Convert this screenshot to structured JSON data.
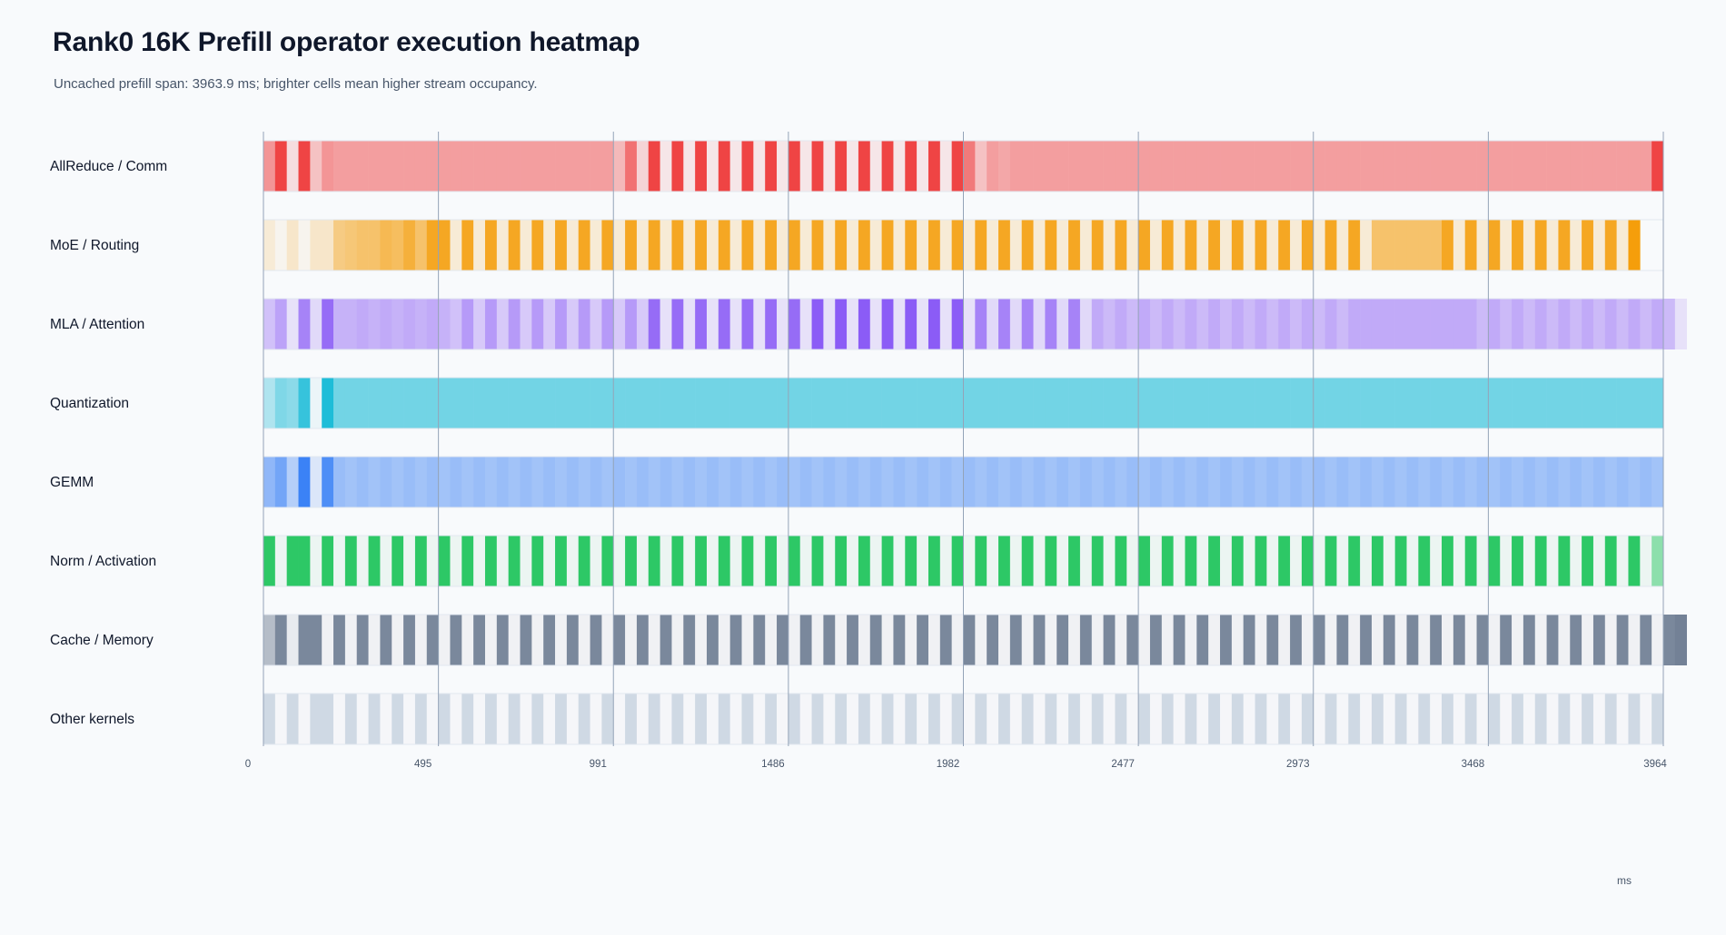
{
  "title": "Rank0 16K Prefill operator execution heatmap",
  "subtitle": "Uncached prefill span: 3963.9 ms; brighter cells mean higher stream occupancy.",
  "chart_data": {
    "type": "heatmap",
    "title": "Rank0 16K Prefill operator execution heatmap",
    "subtitle": "Uncached prefill span: 3963.9 ms; brighter cells mean higher stream occupancy.",
    "xlabel": "ms",
    "xlim": [
      0,
      3963.9
    ],
    "x_ticks": [
      "0",
      "495",
      "991",
      "1486",
      "1982",
      "2477",
      "2973",
      "3468",
      "3964"
    ],
    "cells_per_row": 120,
    "grid": true,
    "rows": [
      {
        "name": "AllReduce / Comm",
        "color": "#ef4444",
        "intensity": [
          0.55,
          1.0,
          0.15,
          1.0,
          0.3,
          0.55,
          0.5,
          0.5,
          0.5,
          0.5,
          0.5,
          0.5,
          0.5,
          0.5,
          0.5,
          0.5,
          0.5,
          0.5,
          0.5,
          0.5,
          0.5,
          0.5,
          0.5,
          0.5,
          0.5,
          0.5,
          0.5,
          0.5,
          0.5,
          0.5,
          0.35,
          0.75,
          0.2,
          1.0,
          0.1,
          1.0,
          0.1,
          1.0,
          0.1,
          1.0,
          0.1,
          1.0,
          0.1,
          1.0,
          0.1,
          1.0,
          0.1,
          1.0,
          0.1,
          1.0,
          0.1,
          1.0,
          0.1,
          1.0,
          0.1,
          1.0,
          0.1,
          1.0,
          0.1,
          1.0,
          0.7,
          0.3,
          0.5,
          0.45,
          0.5,
          0.5,
          0.5,
          0.5,
          0.5,
          0.5,
          0.5,
          0.5,
          0.5,
          0.5,
          0.5,
          0.5,
          0.5,
          0.5,
          0.5,
          0.5,
          0.5,
          0.5,
          0.5,
          0.5,
          0.5,
          0.5,
          0.5,
          0.5,
          0.5,
          0.5,
          0.5,
          0.5,
          0.5,
          0.5,
          0.5,
          0.5,
          0.5,
          0.5,
          0.5,
          0.5,
          0.5,
          0.5,
          0.5,
          0.5,
          0.5,
          0.5,
          0.5,
          0.5,
          0.5,
          0.5,
          0.5,
          0.5,
          0.5,
          0.5,
          0.5,
          0.5,
          0.5,
          0.5,
          0.5,
          1.0
        ]
      },
      {
        "name": "MoE / Routing",
        "color": "#f59e0b",
        "intensity": [
          0.15,
          0.05,
          0.2,
          0.05,
          0.2,
          0.2,
          0.5,
          0.55,
          0.6,
          0.6,
          0.7,
          0.65,
          0.8,
          0.6,
          0.9,
          0.9,
          0.15,
          0.9,
          0.15,
          0.9,
          0.15,
          0.9,
          0.15,
          0.9,
          0.15,
          0.9,
          0.15,
          0.9,
          0.15,
          0.9,
          0.15,
          0.9,
          0.15,
          0.9,
          0.15,
          0.9,
          0.15,
          0.9,
          0.15,
          0.9,
          0.15,
          0.9,
          0.15,
          0.9,
          0.15,
          0.9,
          0.15,
          0.9,
          0.15,
          0.9,
          0.15,
          0.9,
          0.15,
          0.9,
          0.15,
          0.9,
          0.15,
          0.9,
          0.15,
          0.9,
          0.15,
          0.9,
          0.15,
          0.9,
          0.15,
          0.9,
          0.15,
          0.9,
          0.15,
          0.9,
          0.15,
          0.9,
          0.15,
          0.9,
          0.15,
          0.9,
          0.15,
          0.9,
          0.15,
          0.9,
          0.15,
          0.9,
          0.15,
          0.9,
          0.15,
          0.9,
          0.15,
          0.9,
          0.15,
          0.9,
          0.15,
          0.9,
          0.15,
          0.9,
          0.15,
          0.6,
          0.6,
          0.6,
          0.6,
          0.6,
          0.6,
          0.9,
          0.15,
          0.9,
          0.15,
          0.9,
          0.15,
          0.9,
          0.15,
          0.9,
          0.15,
          0.9,
          0.15,
          0.9,
          0.15,
          0.9,
          0.15,
          1.0
        ]
      },
      {
        "name": "MLA / Attention",
        "color": "#8b5cf6",
        "intensity": [
          0.35,
          0.55,
          0.15,
          0.75,
          0.2,
          0.9,
          0.45,
          0.45,
          0.5,
          0.45,
          0.5,
          0.45,
          0.5,
          0.45,
          0.5,
          0.45,
          0.35,
          0.6,
          0.3,
          0.6,
          0.3,
          0.6,
          0.3,
          0.6,
          0.3,
          0.6,
          0.3,
          0.6,
          0.3,
          0.6,
          0.3,
          0.6,
          0.3,
          0.9,
          0.15,
          0.9,
          0.15,
          0.9,
          0.15,
          0.9,
          0.15,
          0.9,
          0.15,
          0.9,
          0.15,
          0.9,
          0.15,
          1.0,
          0.15,
          1.0,
          0.15,
          1.0,
          0.15,
          1.0,
          0.15,
          1.0,
          0.15,
          1.0,
          0.15,
          1.0,
          0.15,
          0.75,
          0.2,
          0.75,
          0.2,
          0.75,
          0.2,
          0.75,
          0.2,
          0.75,
          0.2,
          0.5,
          0.4,
          0.5,
          0.4,
          0.5,
          0.4,
          0.5,
          0.4,
          0.5,
          0.4,
          0.5,
          0.4,
          0.5,
          0.4,
          0.5,
          0.4,
          0.5,
          0.4,
          0.5,
          0.4,
          0.5,
          0.4,
          0.5,
          0.5,
          0.5,
          0.5,
          0.5,
          0.5,
          0.5,
          0.5,
          0.5,
          0.5,
          0.5,
          0.4,
          0.5,
          0.4,
          0.5,
          0.4,
          0.5,
          0.4,
          0.5,
          0.4,
          0.5,
          0.4,
          0.5,
          0.4,
          0.5,
          0.4,
          0.5,
          0.4,
          0.15
        ]
      },
      {
        "name": "Quantization",
        "color": "#06b6d4",
        "intensity": [
          0.3,
          0.5,
          0.45,
          0.8,
          0.05,
          0.9,
          0.55,
          0.55,
          0.55,
          0.55,
          0.55,
          0.55,
          0.55,
          0.55,
          0.55,
          0.55,
          0.55,
          0.55,
          0.55,
          0.55,
          0.55,
          0.55,
          0.55,
          0.55,
          0.55,
          0.55,
          0.55,
          0.55,
          0.55,
          0.55,
          0.55,
          0.55,
          0.55,
          0.55,
          0.55,
          0.55,
          0.55,
          0.55,
          0.55,
          0.55,
          0.55,
          0.55,
          0.55,
          0.55,
          0.55,
          0.55,
          0.55,
          0.55,
          0.55,
          0.55,
          0.55,
          0.55,
          0.55,
          0.55,
          0.55,
          0.55,
          0.55,
          0.55,
          0.55,
          0.55,
          0.55,
          0.55,
          0.55,
          0.55,
          0.55,
          0.55,
          0.55,
          0.55,
          0.55,
          0.55,
          0.55,
          0.55,
          0.55,
          0.55,
          0.55,
          0.55,
          0.55,
          0.55,
          0.55,
          0.55,
          0.55,
          0.55,
          0.55,
          0.55,
          0.55,
          0.55,
          0.55,
          0.55,
          0.55,
          0.55,
          0.55,
          0.55,
          0.55,
          0.55,
          0.55,
          0.55,
          0.55,
          0.55,
          0.55,
          0.55,
          0.55,
          0.55,
          0.55,
          0.55,
          0.55,
          0.55,
          0.55,
          0.55,
          0.55,
          0.55,
          0.55,
          0.55,
          0.55,
          0.55,
          0.55,
          0.55,
          0.55,
          0.55,
          0.55,
          0.55
        ]
      },
      {
        "name": "GEMM",
        "color": "#3b82f6",
        "intensity": [
          0.55,
          0.7,
          0.35,
          1.0,
          0.15,
          0.9,
          0.5,
          0.45,
          0.5,
          0.45,
          0.5,
          0.45,
          0.5,
          0.45,
          0.5,
          0.45,
          0.5,
          0.45,
          0.5,
          0.45,
          0.5,
          0.45,
          0.5,
          0.45,
          0.5,
          0.45,
          0.5,
          0.45,
          0.5,
          0.45,
          0.5,
          0.45,
          0.5,
          0.45,
          0.5,
          0.45,
          0.5,
          0.45,
          0.5,
          0.45,
          0.5,
          0.45,
          0.5,
          0.45,
          0.5,
          0.45,
          0.5,
          0.45,
          0.5,
          0.45,
          0.5,
          0.45,
          0.5,
          0.45,
          0.5,
          0.45,
          0.5,
          0.45,
          0.5,
          0.45,
          0.5,
          0.45,
          0.5,
          0.45,
          0.5,
          0.45,
          0.5,
          0.45,
          0.5,
          0.45,
          0.5,
          0.45,
          0.5,
          0.45,
          0.5,
          0.45,
          0.5,
          0.45,
          0.5,
          0.45,
          0.5,
          0.45,
          0.5,
          0.45,
          0.5,
          0.45,
          0.5,
          0.45,
          0.5,
          0.45,
          0.5,
          0.45,
          0.5,
          0.45,
          0.5,
          0.45,
          0.5,
          0.45,
          0.5,
          0.45,
          0.5,
          0.45,
          0.5,
          0.45,
          0.5,
          0.45,
          0.5,
          0.45,
          0.5,
          0.45,
          0.5,
          0.45,
          0.5,
          0.45,
          0.5,
          0.45,
          0.5,
          0.45,
          0.5,
          0.45
        ]
      },
      {
        "name": "Norm / Activation",
        "color": "#22c55e",
        "intensity": [
          0.95,
          0.05,
          0.95,
          0.95,
          0.05,
          0.95,
          0.05,
          0.95,
          0.05,
          0.95,
          0.05,
          0.95,
          0.05,
          0.95,
          0.05,
          0.95,
          0.05,
          0.95,
          0.05,
          0.95,
          0.05,
          0.95,
          0.05,
          0.95,
          0.05,
          0.95,
          0.05,
          0.95,
          0.05,
          0.95,
          0.05,
          0.95,
          0.05,
          0.95,
          0.05,
          0.95,
          0.05,
          0.95,
          0.05,
          0.95,
          0.05,
          0.95,
          0.05,
          0.95,
          0.05,
          0.95,
          0.05,
          0.95,
          0.05,
          0.95,
          0.05,
          0.95,
          0.05,
          0.95,
          0.05,
          0.95,
          0.05,
          0.95,
          0.05,
          0.95,
          0.05,
          0.95,
          0.05,
          0.95,
          0.05,
          0.95,
          0.05,
          0.95,
          0.05,
          0.95,
          0.05,
          0.95,
          0.05,
          0.95,
          0.05,
          0.95,
          0.05,
          0.95,
          0.05,
          0.95,
          0.05,
          0.95,
          0.05,
          0.95,
          0.05,
          0.95,
          0.05,
          0.95,
          0.05,
          0.95,
          0.05,
          0.95,
          0.05,
          0.95,
          0.05,
          0.95,
          0.05,
          0.95,
          0.05,
          0.95,
          0.05,
          0.95,
          0.05,
          0.95,
          0.05,
          0.95,
          0.05,
          0.95,
          0.05,
          0.95,
          0.05,
          0.95,
          0.05,
          0.95,
          0.05,
          0.95,
          0.05,
          0.95,
          0.05,
          0.5
        ]
      },
      {
        "name": "Cache / Memory",
        "color": "#64748b",
        "intensity": [
          0.45,
          0.85,
          0.1,
          0.85,
          0.85,
          0.05,
          0.85,
          0.05,
          0.85,
          0.05,
          0.85,
          0.05,
          0.85,
          0.05,
          0.85,
          0.05,
          0.85,
          0.05,
          0.85,
          0.05,
          0.85,
          0.05,
          0.85,
          0.05,
          0.85,
          0.05,
          0.85,
          0.05,
          0.85,
          0.05,
          0.85,
          0.05,
          0.85,
          0.05,
          0.85,
          0.05,
          0.85,
          0.05,
          0.85,
          0.05,
          0.85,
          0.05,
          0.85,
          0.05,
          0.85,
          0.05,
          0.85,
          0.05,
          0.85,
          0.05,
          0.85,
          0.05,
          0.85,
          0.05,
          0.85,
          0.05,
          0.85,
          0.05,
          0.85,
          0.05,
          0.85,
          0.05,
          0.85,
          0.05,
          0.85,
          0.05,
          0.85,
          0.05,
          0.85,
          0.05,
          0.85,
          0.05,
          0.85,
          0.05,
          0.85,
          0.05,
          0.85,
          0.05,
          0.85,
          0.05,
          0.85,
          0.05,
          0.85,
          0.05,
          0.85,
          0.05,
          0.85,
          0.05,
          0.85,
          0.05,
          0.85,
          0.05,
          0.85,
          0.05,
          0.85,
          0.05,
          0.85,
          0.05,
          0.85,
          0.05,
          0.85,
          0.05,
          0.85,
          0.05,
          0.85,
          0.05,
          0.85,
          0.05,
          0.85,
          0.05,
          0.85,
          0.05,
          0.85,
          0.05,
          0.85,
          0.05,
          0.85,
          0.05,
          0.85,
          0.05,
          0.85,
          0.9
        ]
      },
      {
        "name": "Other kernels",
        "color": "#cbd5e1",
        "intensity": [
          0.9,
          0.05,
          0.9,
          0.05,
          0.9,
          0.9,
          0.05,
          0.9,
          0.05,
          0.9,
          0.05,
          0.9,
          0.05,
          0.9,
          0.05,
          0.9,
          0.05,
          0.9,
          0.05,
          0.9,
          0.05,
          0.9,
          0.05,
          0.9,
          0.05,
          0.9,
          0.05,
          0.9,
          0.05,
          0.9,
          0.05,
          0.9,
          0.05,
          0.9,
          0.05,
          0.9,
          0.05,
          0.9,
          0.05,
          0.9,
          0.05,
          0.9,
          0.05,
          0.9,
          0.05,
          0.9,
          0.05,
          0.9,
          0.05,
          0.9,
          0.05,
          0.9,
          0.05,
          0.9,
          0.05,
          0.9,
          0.05,
          0.9,
          0.05,
          0.9,
          0.05,
          0.9,
          0.05,
          0.9,
          0.05,
          0.9,
          0.05,
          0.9,
          0.05,
          0.9,
          0.05,
          0.9,
          0.05,
          0.9,
          0.05,
          0.9,
          0.05,
          0.9,
          0.05,
          0.9,
          0.05,
          0.9,
          0.05,
          0.9,
          0.05,
          0.9,
          0.05,
          0.9,
          0.05,
          0.9,
          0.05,
          0.9,
          0.05,
          0.9,
          0.05,
          0.9,
          0.05,
          0.9,
          0.05,
          0.9,
          0.05,
          0.9,
          0.05,
          0.9,
          0.05,
          0.9,
          0.05,
          0.9,
          0.05,
          0.9,
          0.05,
          0.9,
          0.05,
          0.9,
          0.05,
          0.9,
          0.05,
          0.9,
          0.05,
          0.9
        ]
      }
    ]
  }
}
